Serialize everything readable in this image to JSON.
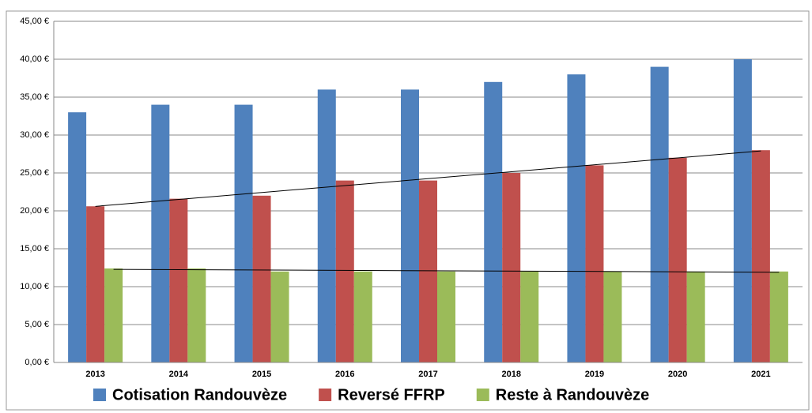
{
  "chart_data": {
    "type": "bar",
    "categories": [
      "2013",
      "2014",
      "2015",
      "2016",
      "2017",
      "2018",
      "2019",
      "2020",
      "2021"
    ],
    "series": [
      {
        "name": "Cotisation Randouvèze",
        "color": "#4f81bd",
        "values": [
          33,
          34,
          34,
          36,
          36,
          37,
          38,
          39,
          40
        ]
      },
      {
        "name": "Reversé FFRP",
        "color": "#c0504d",
        "values": [
          20.6,
          21.6,
          22,
          24,
          24,
          25,
          26,
          27,
          28
        ],
        "trendline": true
      },
      {
        "name": "Reste à Randouvèze",
        "color": "#9bbb59",
        "values": [
          12.4,
          12.4,
          12,
          12,
          12,
          12,
          12,
          12,
          12
        ],
        "trendline": true
      }
    ],
    "ylim": [
      0,
      45
    ],
    "yticks": [
      {
        "value": 0,
        "label": "0,00 €"
      },
      {
        "value": 5,
        "label": "5,00 €"
      },
      {
        "value": 10,
        "label": "10,00 €"
      },
      {
        "value": 15,
        "label": "15,00 €"
      },
      {
        "value": 20,
        "label": "20,00 €"
      },
      {
        "value": 25,
        "label": "25,00 €"
      },
      {
        "value": 30,
        "label": "30,00 €"
      },
      {
        "value": 35,
        "label": "35,00 €"
      },
      {
        "value": 40,
        "label": "40,00 €"
      },
      {
        "value": 45,
        "label": "45,00 €"
      }
    ],
    "grid": true,
    "legend": "bottom"
  }
}
